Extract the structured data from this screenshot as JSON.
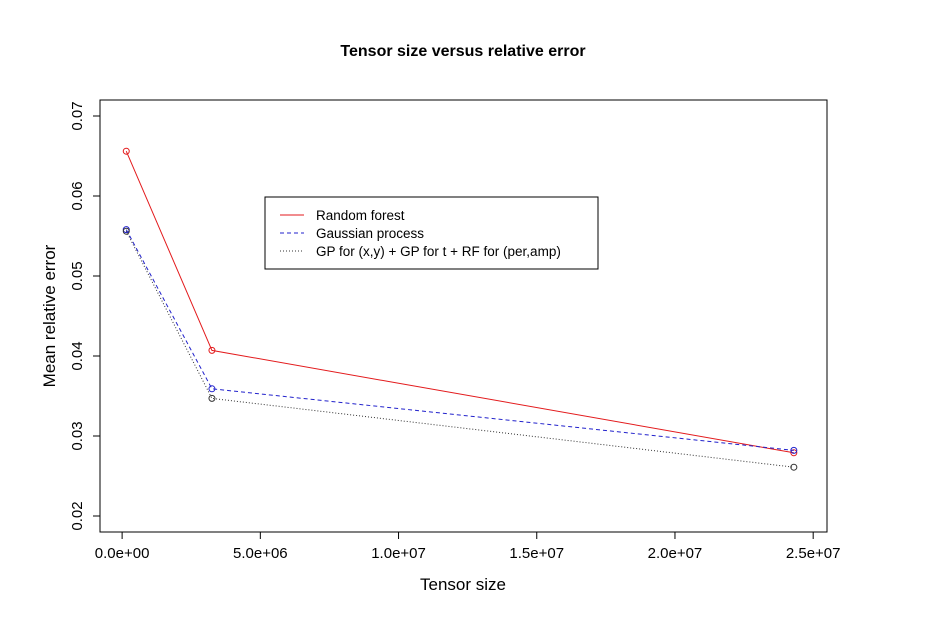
{
  "chart_data": {
    "type": "line",
    "title": "Tensor size versus relative error",
    "xlabel": "Tensor size",
    "ylabel": "Mean relative error",
    "xlim": [
      -800000,
      25500000
    ],
    "ylim": [
      0.018,
      0.072
    ],
    "x_ticks": [
      0,
      5000000,
      10000000,
      15000000,
      20000000,
      25000000
    ],
    "x_tick_labels": [
      "0.0e+00",
      "5.0e+06",
      "1.0e+07",
      "1.5e+07",
      "2.0e+07",
      "2.5e+07"
    ],
    "y_ticks": [
      0.02,
      0.03,
      0.04,
      0.05,
      0.06,
      0.07
    ],
    "y_tick_labels": [
      "0.02",
      "0.03",
      "0.04",
      "0.05",
      "0.06",
      "0.07"
    ],
    "grid": false,
    "legend_position": "upper-center",
    "series": [
      {
        "name": "Random forest",
        "color": "#e31a1c",
        "line_style": "solid",
        "marker": "open-circle",
        "x": [
          150000,
          3250000,
          24300000
        ],
        "y": [
          0.0656,
          0.0407,
          0.0279
        ]
      },
      {
        "name": "Gaussian process",
        "color": "#2222cc",
        "line_style": "dashed",
        "marker": "open-circle",
        "x": [
          150000,
          3250000,
          24300000
        ],
        "y": [
          0.0558,
          0.0359,
          0.0282
        ]
      },
      {
        "name": "GP for (x,y) + GP for t + RF for (per,amp)",
        "color": "#333333",
        "line_style": "dotted",
        "marker": "open-circle",
        "x": [
          150000,
          3250000,
          24300000
        ],
        "y": [
          0.0556,
          0.0347,
          0.0261
        ]
      }
    ]
  }
}
